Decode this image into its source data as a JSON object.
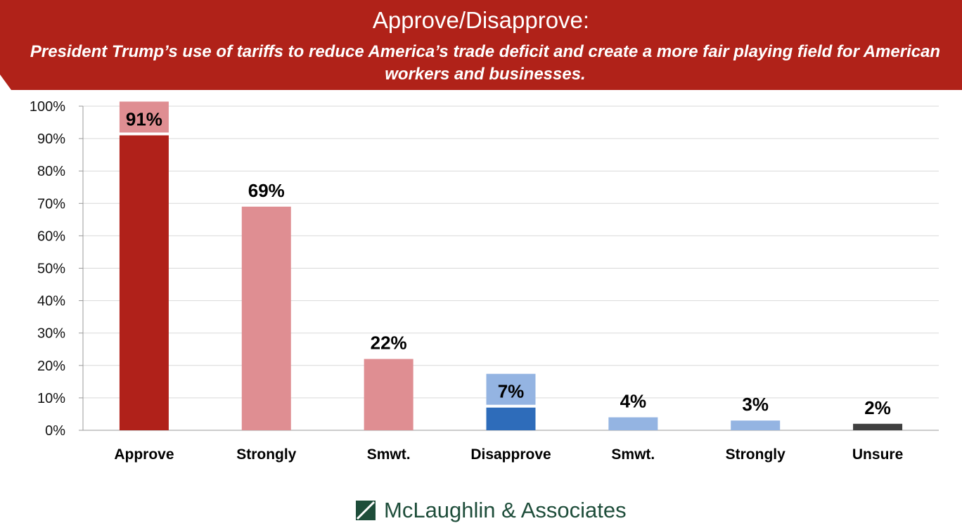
{
  "chart_data": {
    "type": "bar",
    "title": "Approve/Disapprove:",
    "subtitle": "President Trump’s use of tariffs to reduce America’s trade deficit and create a more fair playing field for American workers and businesses.",
    "categories": [
      "Approve",
      "Strongly",
      "Smwt.",
      "Disapprove",
      "Smwt.",
      "Strongly",
      "Unsure"
    ],
    "values": [
      91,
      69,
      22,
      7,
      4,
      3,
      2
    ],
    "labels": [
      "91%",
      "69%",
      "22%",
      "7%",
      "4%",
      "3%",
      "2%"
    ],
    "colors": [
      "#b0211a",
      "#df8e92",
      "#df8e92",
      "#2e6cba",
      "#94b4e2",
      "#94b4e2",
      "#404040"
    ],
    "label_box_colors": [
      "#df8e92",
      null,
      null,
      null,
      null,
      null,
      null
    ],
    "label_box_colors_alt": [
      null,
      null,
      null,
      "#94b4e2",
      null,
      null,
      null
    ],
    "ylim": [
      0,
      100
    ],
    "yticks": [
      "0%",
      "10%",
      "20%",
      "30%",
      "40%",
      "50%",
      "60%",
      "70%",
      "80%",
      "90%",
      "100%"
    ],
    "grid": true,
    "xlabel": "",
    "ylabel": ""
  },
  "footer": {
    "logo_text": "McLaughlin & Associates"
  }
}
